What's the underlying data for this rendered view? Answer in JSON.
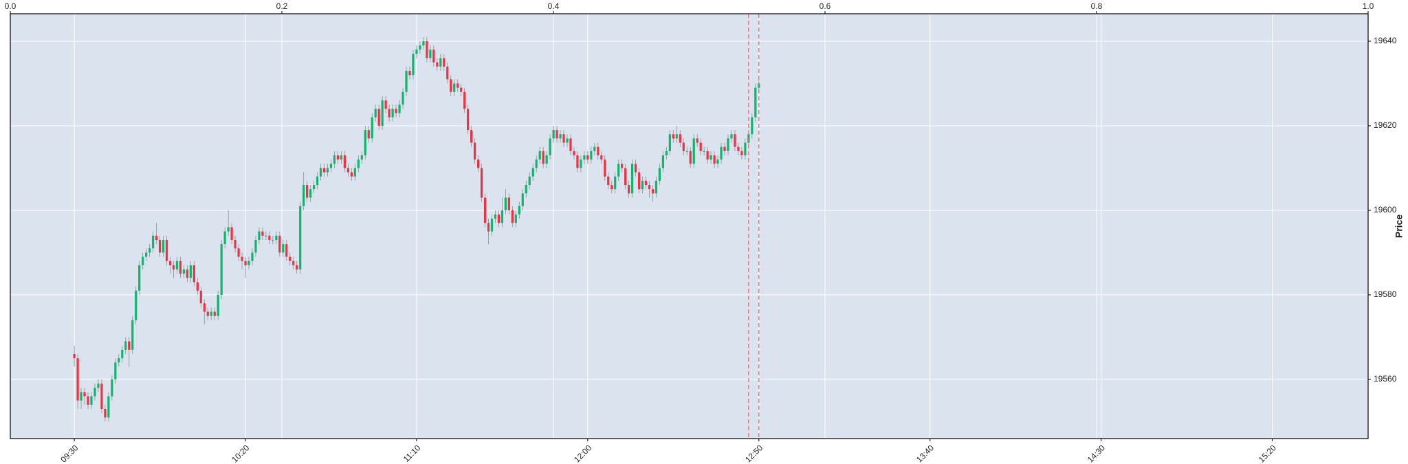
{
  "chart_data": {
    "type": "candlestick",
    "ylabel": "Price",
    "open": [
      19566,
      19565,
      19555,
      19557,
      19556,
      19554,
      19556,
      19558,
      19559,
      19553,
      19551,
      19556,
      19560,
      19564,
      19565,
      19567,
      19569,
      19567,
      19574,
      19581,
      19587,
      19589,
      19590,
      19591,
      19594,
      19593,
      19590,
      19593,
      19588,
      19587,
      19586,
      19588,
      19585,
      19586,
      19584,
      19587,
      19583,
      19581,
      19578,
      19576,
      19575,
      19576,
      19575,
      19580,
      19592,
      19595,
      19596,
      19593,
      19591,
      19589,
      19588,
      19587,
      19588,
      19590,
      19593,
      19595,
      19594,
      19594,
      19593,
      19593,
      19594,
      19590,
      19592,
      19589,
      19588,
      19587,
      19586,
      19601,
      19606,
      19603,
      19605,
      19606,
      19608,
      19610,
      19609,
      19610,
      19611,
      19613,
      19612,
      19613,
      19610,
      19609,
      19608,
      19610,
      19612,
      19613,
      19619,
      19617,
      19622,
      19624,
      19620,
      19626,
      19624,
      19622,
      19624,
      19623,
      19625,
      19628,
      19633,
      19632,
      19637,
      19638,
      19639,
      19640,
      19636,
      19638,
      19635,
      19634,
      19636,
      19634,
      19631,
      19628,
      19630,
      19629,
      19628,
      19624,
      19619,
      19616,
      19612,
      19610,
      19603,
      19597,
      19595,
      19598,
      19599,
      19597,
      19600,
      19603,
      19600,
      19597,
      19599,
      19601,
      19604,
      19606,
      19608,
      19610,
      19612,
      19614,
      19611,
      19613,
      19617,
      19619,
      19617,
      19618,
      19616,
      19617,
      19614,
      19613,
      19610,
      19612,
      19613,
      19612,
      19614,
      19615,
      19613,
      19612,
      19608,
      19606,
      19605,
      19608,
      19611,
      19610,
      19606,
      19604,
      19611,
      19609,
      19605,
      19607,
      19606,
      19605,
      19604,
      19607,
      19610,
      19613,
      19614,
      19618,
      19617,
      19618,
      19616,
      19614,
      19614,
      19611,
      19617,
      19616,
      19614,
      19614,
      19612,
      19613,
      19611,
      19612,
      19615,
      19614,
      19617,
      19618,
      19615,
      19614,
      19613,
      19616,
      19618,
      19622,
      19629
    ],
    "high": [
      19568,
      19566,
      19558,
      19558,
      19557,
      19557,
      19559,
      19560,
      19560,
      19554,
      19557,
      19561,
      19565,
      19566,
      19568,
      19570,
      19570,
      19575,
      19582,
      19588,
      19590,
      19591,
      19592,
      19595,
      19597,
      19594,
      19594,
      19594,
      19589,
      19588,
      19589,
      19589,
      19587,
      19587,
      19588,
      19588,
      19584,
      19582,
      19579,
      19577,
      19577,
      19577,
      19581,
      19593,
      19596,
      19600,
      19597,
      19594,
      19592,
      19590,
      19589,
      19589,
      19591,
      19594,
      19596,
      19596,
      19595,
      19595,
      19594,
      19595,
      19595,
      19593,
      19593,
      19590,
      19589,
      19588,
      19602,
      19609,
      19607,
      19606,
      19607,
      19609,
      19611,
      19611,
      19611,
      19612,
      19614,
      19614,
      19614,
      19614,
      19611,
      19610,
      19611,
      19613,
      19614,
      19620,
      19620,
      19623,
      19625,
      19625,
      19627,
      19627,
      19625,
      19625,
      19625,
      19626,
      19629,
      19634,
      19634,
      19638,
      19639,
      19640,
      19641,
      19641,
      19639,
      19639,
      19636,
      19637,
      19637,
      19635,
      19632,
      19631,
      19631,
      19630,
      19629,
      19625,
      19620,
      19617,
      19613,
      19611,
      19604,
      19598,
      19599,
      19600,
      19600,
      19603,
      19605,
      19604,
      19601,
      19600,
      19602,
      19605,
      19607,
      19609,
      19611,
      19613,
      19615,
      19615,
      19614,
      19618,
      19620,
      19620,
      19619,
      19619,
      19618,
      19618,
      19615,
      19614,
      19613,
      19614,
      19614,
      19615,
      19616,
      19616,
      19614,
      19613,
      19609,
      19607,
      19609,
      19612,
      19612,
      19611,
      19607,
      19612,
      19612,
      19610,
      19608,
      19608,
      19607,
      19606,
      19608,
      19611,
      19614,
      19615,
      19619,
      19619,
      19620,
      19619,
      19617,
      19615,
      19615,
      19618,
      19618,
      19617,
      19615,
      19615,
      19614,
      19614,
      19613,
      19616,
      19616,
      19618,
      19619,
      19619,
      19616,
      19615,
      19617,
      19619,
      19623,
      19630,
      19631
    ],
    "low": [
      19563,
      19553,
      19553,
      19554,
      19553,
      19553,
      19555,
      19557,
      19552,
      19550,
      19550,
      19555,
      19559,
      19563,
      19564,
      19566,
      19563,
      19566,
      19573,
      19580,
      19586,
      19588,
      19589,
      19590,
      19592,
      19589,
      19589,
      19587,
      19585,
      19584,
      19585,
      19584,
      19584,
      19583,
      19583,
      19582,
      19580,
      19577,
      19573,
      19574,
      19574,
      19574,
      19574,
      19579,
      19591,
      19594,
      19592,
      19590,
      19588,
      19586,
      19584,
      19586,
      19587,
      19589,
      19592,
      19593,
      19593,
      19592,
      19592,
      19592,
      19589,
      19589,
      19588,
      19587,
      19586,
      19585,
      19585,
      19600,
      19602,
      19602,
      19604,
      19605,
      19607,
      19608,
      19608,
      19609,
      19610,
      19611,
      19611,
      19609,
      19608,
      19607,
      19607,
      19609,
      19611,
      19612,
      19616,
      19616,
      19621,
      19619,
      19619,
      19623,
      19621,
      19621,
      19622,
      19622,
      19624,
      19627,
      19631,
      19631,
      19636,
      19637,
      19638,
      19635,
      19635,
      19634,
      19633,
      19633,
      19633,
      19630,
      19627,
      19627,
      19628,
      19627,
      19623,
      19618,
      19615,
      19611,
      19609,
      19602,
      19596,
      19592,
      19594,
      19597,
      19596,
      19596,
      19599,
      19599,
      19596,
      19596,
      19598,
      19600,
      19603,
      19605,
      19607,
      19609,
      19611,
      19610,
      19610,
      19612,
      19616,
      19616,
      19616,
      19615,
      19615,
      19613,
      19612,
      19609,
      19609,
      19611,
      19611,
      19611,
      19613,
      19612,
      19611,
      19607,
      19605,
      19604,
      19604,
      19607,
      19609,
      19605,
      19603,
      19603,
      19608,
      19604,
      19604,
      19605,
      19603,
      19602,
      19603,
      19606,
      19609,
      19612,
      19613,
      19616,
      19616,
      19615,
      19613,
      19613,
      19610,
      19610,
      19615,
      19613,
      19613,
      19611,
      19611,
      19610,
      19610,
      19611,
      19613,
      19613,
      19616,
      19614,
      19613,
      19612,
      19612,
      19615,
      19617,
      19621,
      19628
    ],
    "close": [
      19565,
      19555,
      19557,
      19556,
      19554,
      19556,
      19558,
      19559,
      19553,
      19551,
      19556,
      19560,
      19564,
      19565,
      19567,
      19569,
      19567,
      19574,
      19581,
      19587,
      19589,
      19590,
      19591,
      19594,
      19593,
      19590,
      19593,
      19588,
      19587,
      19586,
      19588,
      19585,
      19586,
      19584,
      19587,
      19583,
      19581,
      19578,
      19576,
      19575,
      19576,
      19575,
      19580,
      19592,
      19595,
      19596,
      19593,
      19591,
      19589,
      19588,
      19587,
      19588,
      19590,
      19593,
      19595,
      19594,
      19594,
      19593,
      19593,
      19594,
      19590,
      19592,
      19589,
      19588,
      19587,
      19586,
      19601,
      19606,
      19603,
      19605,
      19606,
      19608,
      19610,
      19609,
      19610,
      19611,
      19613,
      19612,
      19613,
      19610,
      19609,
      19608,
      19610,
      19612,
      19613,
      19619,
      19617,
      19622,
      19624,
      19620,
      19626,
      19624,
      19622,
      19624,
      19623,
      19625,
      19628,
      19633,
      19632,
      19637,
      19638,
      19639,
      19640,
      19636,
      19638,
      19635,
      19634,
      19636,
      19634,
      19631,
      19628,
      19630,
      19629,
      19628,
      19624,
      19619,
      19616,
      19612,
      19610,
      19603,
      19597,
      19595,
      19598,
      19599,
      19597,
      19600,
      19603,
      19600,
      19597,
      19599,
      19601,
      19604,
      19606,
      19608,
      19610,
      19612,
      19614,
      19611,
      19613,
      19617,
      19619,
      19617,
      19618,
      19616,
      19617,
      19614,
      19613,
      19610,
      19612,
      19613,
      19612,
      19614,
      19615,
      19613,
      19612,
      19608,
      19606,
      19605,
      19608,
      19611,
      19610,
      19606,
      19604,
      19611,
      19609,
      19605,
      19607,
      19606,
      19605,
      19604,
      19607,
      19610,
      19613,
      19614,
      19618,
      19617,
      19618,
      19616,
      19614,
      19614,
      19611,
      19617,
      19616,
      19614,
      19614,
      19612,
      19613,
      19611,
      19612,
      19615,
      19614,
      19617,
      19618,
      19615,
      19614,
      19613,
      19616,
      19618,
      19622,
      19629,
      19630
    ],
    "up_color": "#10b46c",
    "down_color": "#f2303f",
    "wick_color": "#8a8f99",
    "xlim": [
      -18.7,
      378
    ],
    "xticks": [
      {
        "value": 0,
        "label": "09:30"
      },
      {
        "value": 50,
        "label": "10:20"
      },
      {
        "value": 100,
        "label": "11:10"
      },
      {
        "value": 150,
        "label": "12:00"
      },
      {
        "value": 200,
        "label": "12:50"
      },
      {
        "value": 250,
        "label": "13:40"
      },
      {
        "value": 300,
        "label": "14:30"
      },
      {
        "value": 350,
        "label": "15:20"
      }
    ],
    "x2lim": [
      0,
      1
    ],
    "x2ticks": [
      {
        "value": 0,
        "label": "0.0"
      },
      0.2,
      0.4,
      0.6,
      0.8,
      {
        "value": 1,
        "label": "1.0"
      }
    ],
    "ylim": [
      19546,
      19646.5
    ],
    "yticks": [
      19560,
      19580,
      19600,
      19620,
      19640
    ],
    "grid": true,
    "vlines": [
      197,
      200
    ],
    "vline_color": "#f0606a"
  }
}
